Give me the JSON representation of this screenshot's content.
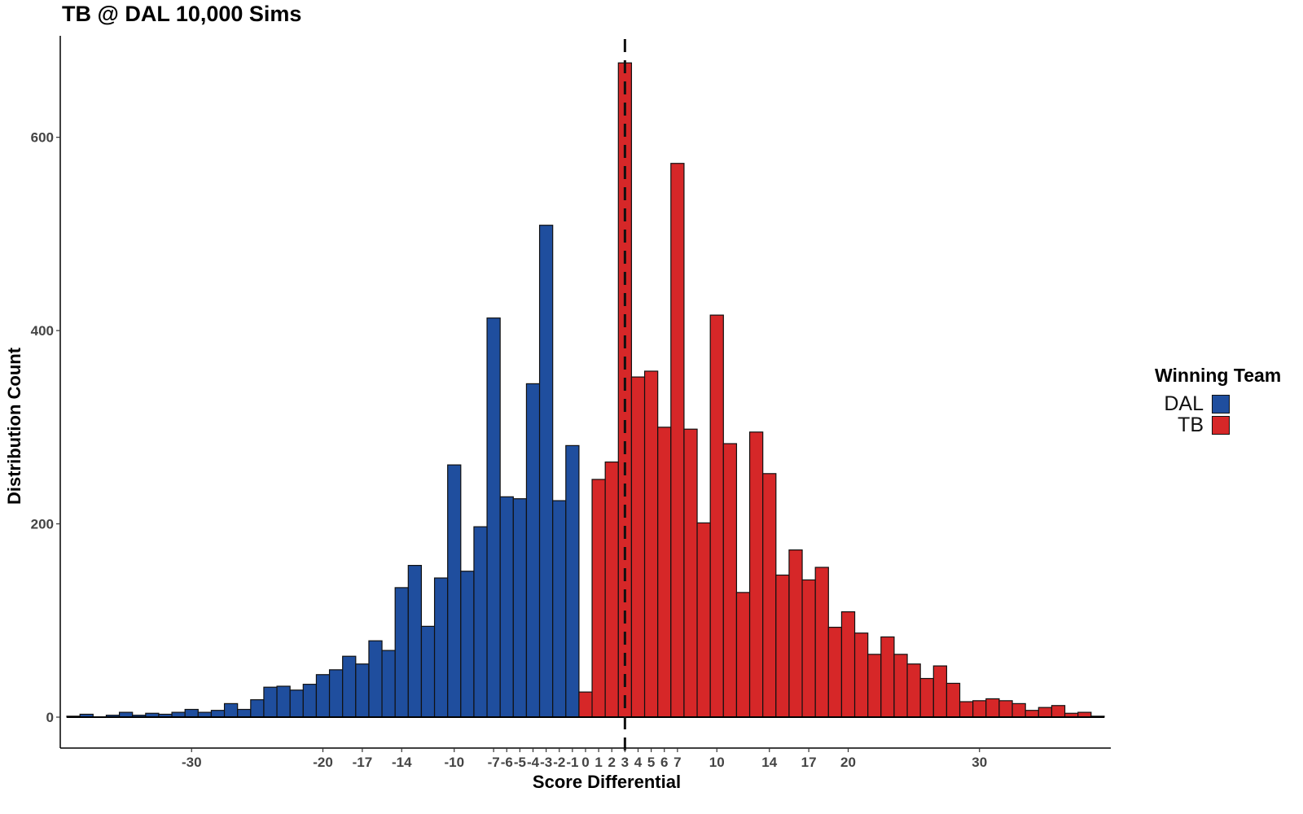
{
  "chart_data": {
    "type": "bar",
    "title": "TB @ DAL 10,000 Sims",
    "xlabel": "Score Differential",
    "ylabel": "Distribution Count",
    "xlim": [
      -40,
      40
    ],
    "ylim": [
      -32,
      705
    ],
    "x_ticks": [
      -30,
      -20,
      -17,
      -14,
      -10,
      -7,
      -6,
      -5,
      -4,
      -3,
      -2,
      -1,
      0,
      1,
      2,
      3,
      4,
      5,
      6,
      7,
      10,
      14,
      17,
      20,
      30
    ],
    "y_ticks": [
      0,
      200,
      400,
      600
    ],
    "reference_line": {
      "x": 3,
      "style": "dashed"
    },
    "legend_title": "Winning Team",
    "legend_position": "right",
    "series": [
      {
        "name": "DAL",
        "color": "#1f4e9e",
        "x": [
          -39,
          -38,
          -37,
          -36,
          -35,
          -34,
          -33,
          -32,
          -31,
          -30,
          -29,
          -28,
          -27,
          -26,
          -25,
          -24,
          -23,
          -22,
          -21,
          -20,
          -19,
          -18,
          -17,
          -16,
          -15,
          -14,
          -13,
          -12,
          -11,
          -10,
          -9,
          -8,
          -7,
          -6,
          -5,
          -4,
          -3,
          -2,
          -1
        ],
        "values": [
          1,
          3,
          0,
          2,
          5,
          2,
          4,
          3,
          5,
          8,
          5,
          7,
          14,
          8,
          18,
          31,
          32,
          28,
          34,
          44,
          49,
          63,
          55,
          79,
          69,
          134,
          157,
          94,
          144,
          261,
          151,
          197,
          413,
          228,
          226,
          345,
          509,
          224,
          281
        ]
      },
      {
        "name": "TB",
        "color": "#d62728",
        "x": [
          0,
          1,
          2,
          3,
          4,
          5,
          6,
          7,
          8,
          9,
          10,
          11,
          12,
          13,
          14,
          15,
          16,
          17,
          18,
          19,
          20,
          21,
          22,
          23,
          24,
          25,
          26,
          27,
          28,
          29,
          30,
          31,
          32,
          33,
          34,
          35,
          36,
          37,
          38,
          39
        ],
        "values": [
          26,
          246,
          264,
          677,
          352,
          358,
          300,
          573,
          298,
          201,
          416,
          283,
          129,
          295,
          252,
          147,
          173,
          142,
          155,
          93,
          109,
          87,
          65,
          83,
          65,
          55,
          40,
          53,
          35,
          16,
          17,
          19,
          17,
          14,
          7,
          10,
          12,
          4,
          5,
          1
        ]
      }
    ]
  }
}
